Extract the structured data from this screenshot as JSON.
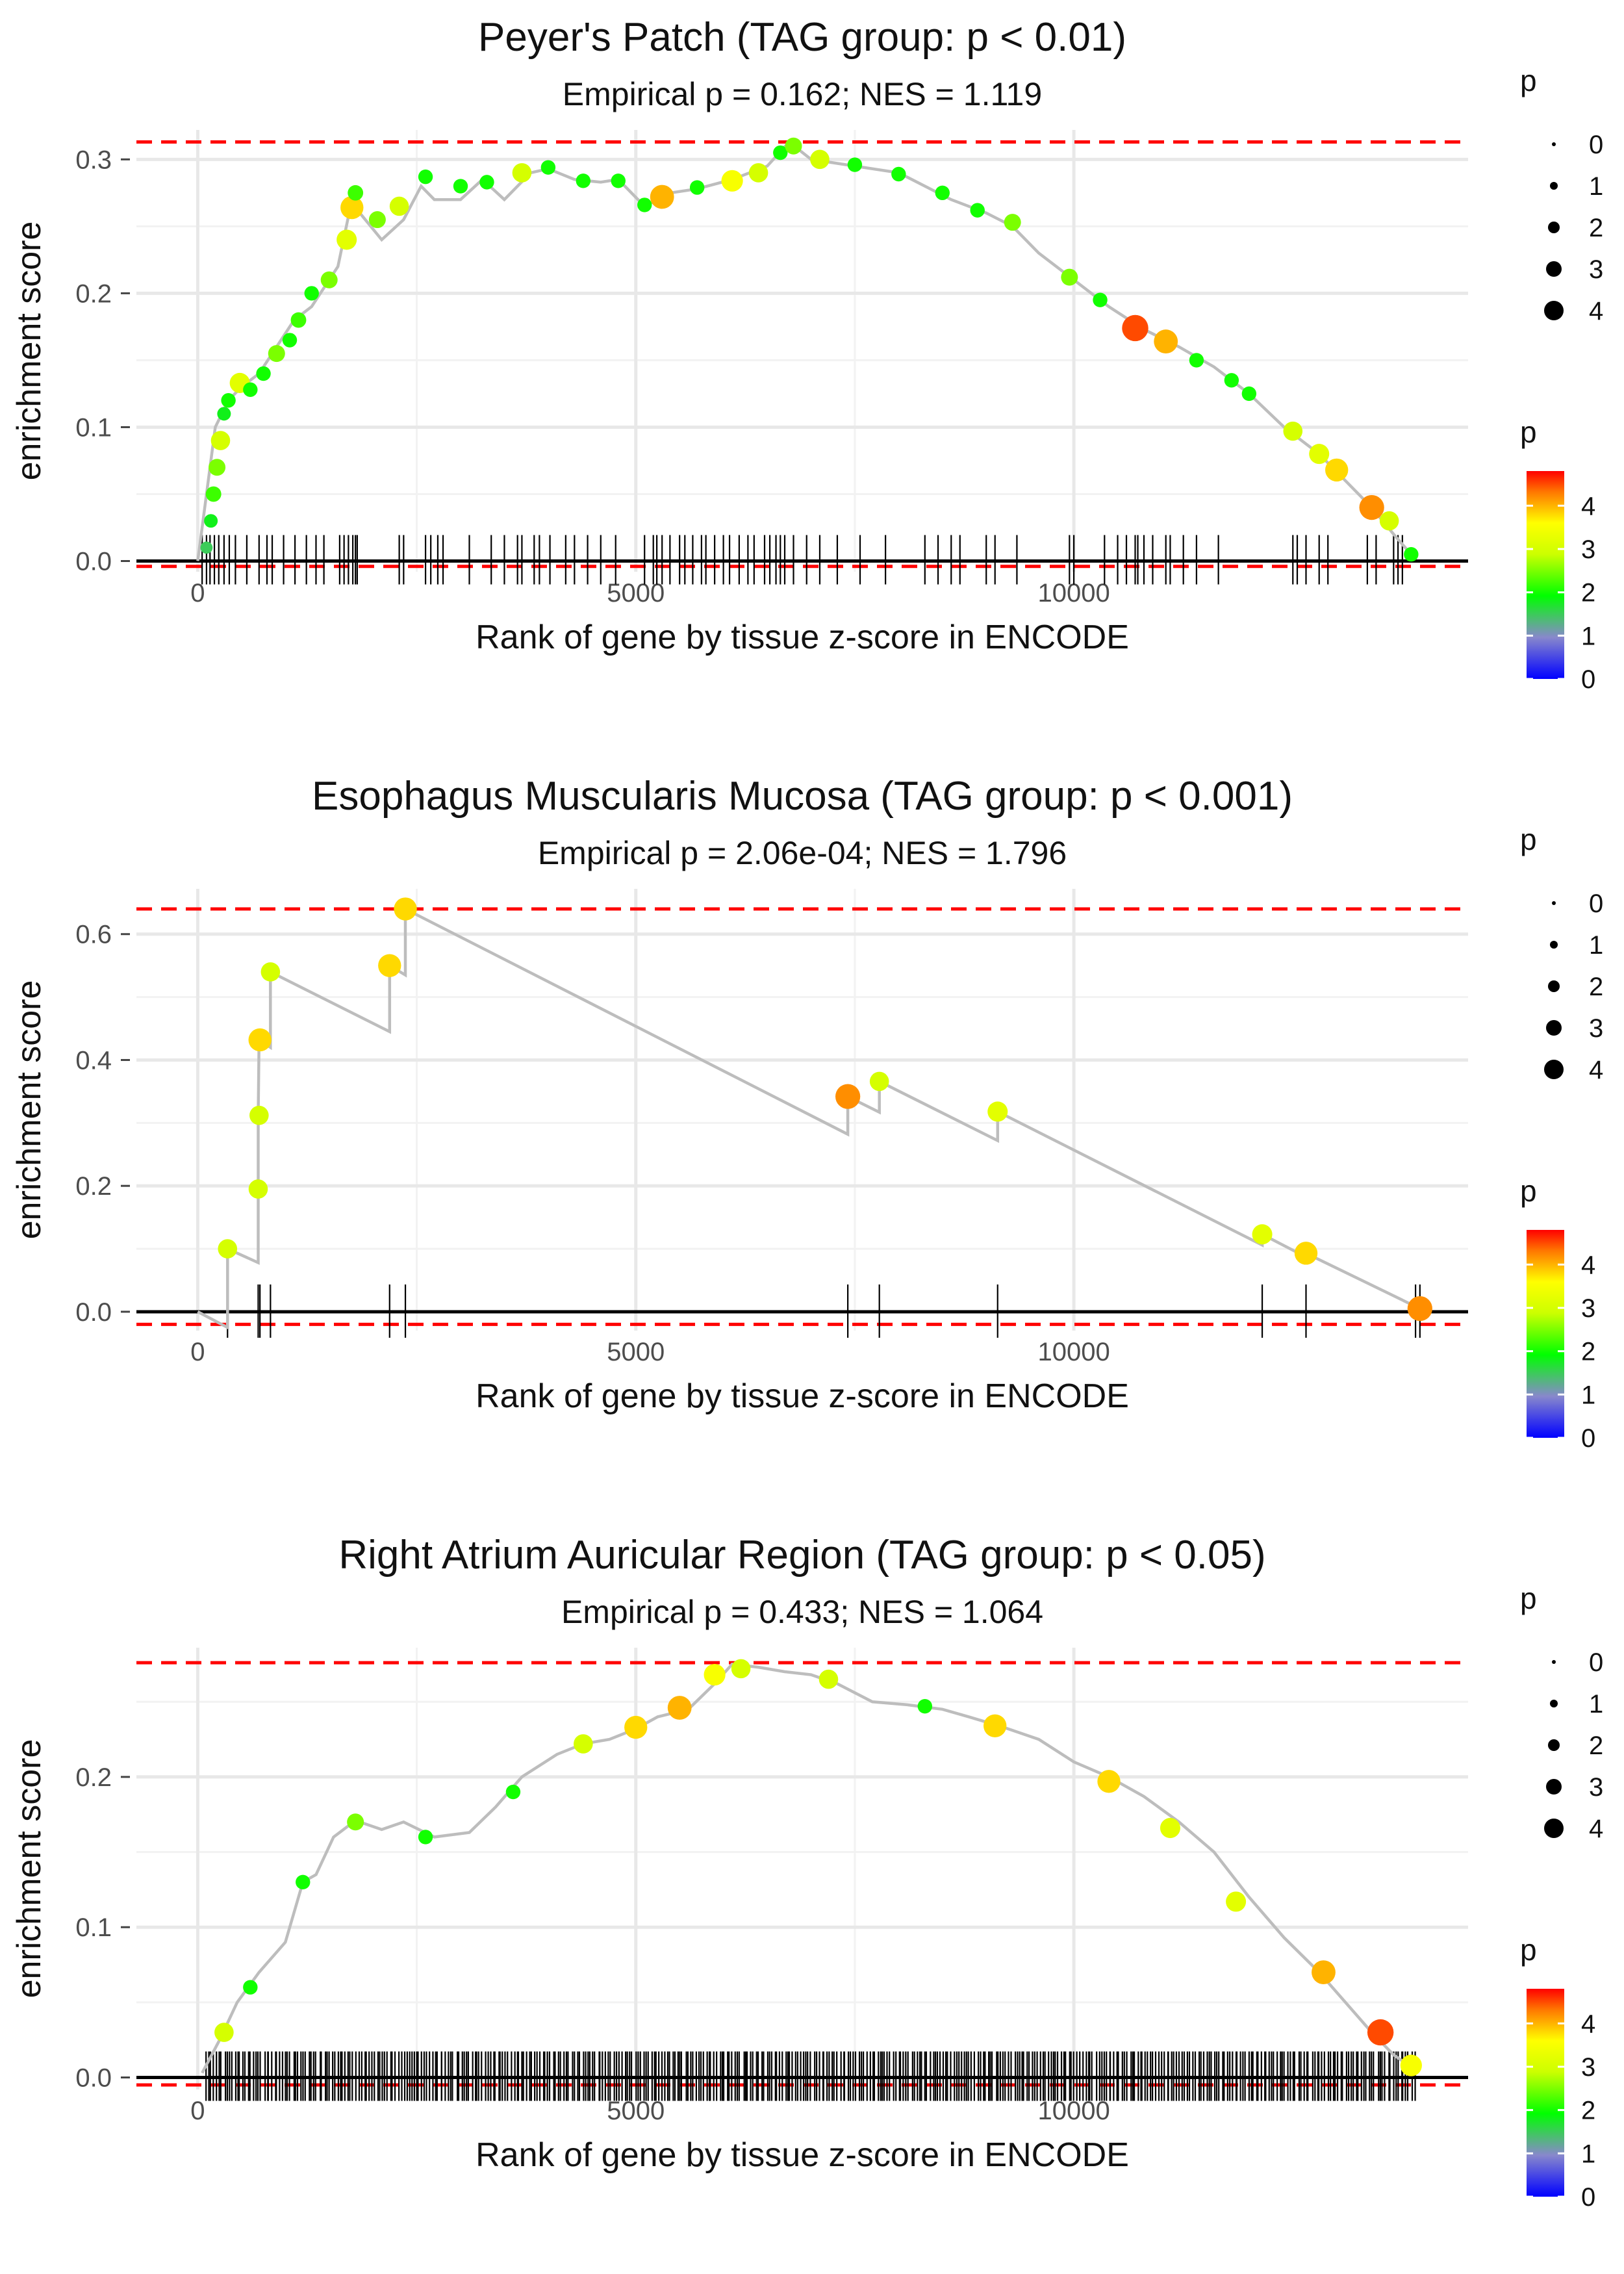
{
  "figure": {
    "type": "multi-panel enrichment plot",
    "panels": [
      {
        "title": "Peyer's Patch (TAG group: p < 0.01)",
        "subtitle": "Empirical p = 0.162; NES = 1.119",
        "xlabel": "Rank of gene by tissue z-score in ENCODE",
        "ylabel": "enrichment score",
        "legend_size_title": "p",
        "legend_color_title": "p"
      },
      {
        "title": "Esophagus Muscularis Mucosa (TAG group: p < 0.001)",
        "subtitle": "Empirical p = 2.06e-04; NES = 1.796",
        "xlabel": "Rank of gene by tissue z-score in ENCODE",
        "ylabel": "enrichment score",
        "legend_size_title": "p",
        "legend_color_title": "p"
      },
      {
        "title": "Right Atrium Auricular Region (TAG group: p < 0.05)",
        "subtitle": "Empirical p = 0.433; NES = 1.064",
        "xlabel": "Rank of gene by tissue z-score in ENCODE",
        "ylabel": "enrichment score",
        "legend_size_title": "p",
        "legend_color_title": "p"
      }
    ]
  },
  "chart_data": [
    {
      "type": "line",
      "title": "Peyer's Patch (TAG group: p < 0.01)",
      "subtitle": "Empirical p = 0.162; NES = 1.119",
      "xlabel": "Rank of gene by tissue z-score in ENCODE",
      "ylabel": "enrichment score",
      "xlim": [
        -700,
        14500
      ],
      "ylim": [
        -0.008,
        0.322
      ],
      "xticks": [
        0,
        5000,
        10000
      ],
      "xtick_labels": [
        "0",
        "5000",
        "10000"
      ],
      "yticks": [
        0,
        0.1,
        0.2,
        0.3
      ],
      "ytick_labels": [
        "0.0",
        "0.1",
        "0.2",
        "0.3"
      ],
      "max_es": 0.313,
      "min_es": -0.004,
      "legend_size_values": [
        "0",
        "1",
        "2",
        "3",
        "4"
      ],
      "colorbar_ticks": [
        "0",
        "1",
        "2",
        "3",
        "4"
      ],
      "colorbar_max": 4.8,
      "curve": [
        [
          0,
          0
        ],
        [
          100,
          0.05
        ],
        [
          200,
          0.1
        ],
        [
          350,
          0.12
        ],
        [
          500,
          0.13
        ],
        [
          700,
          0.14
        ],
        [
          900,
          0.16
        ],
        [
          1100,
          0.18
        ],
        [
          1300,
          0.19
        ],
        [
          1500,
          0.21
        ],
        [
          1600,
          0.22
        ],
        [
          1760,
          0.27
        ],
        [
          1850,
          0.26
        ],
        [
          2100,
          0.24
        ],
        [
          2350,
          0.255
        ],
        [
          2550,
          0.28
        ],
        [
          2700,
          0.27
        ],
        [
          3000,
          0.27
        ],
        [
          3250,
          0.285
        ],
        [
          3500,
          0.27
        ],
        [
          3800,
          0.29
        ],
        [
          4000,
          0.293
        ],
        [
          4300,
          0.285
        ],
        [
          4600,
          0.283
        ],
        [
          4800,
          0.285
        ],
        [
          5100,
          0.265
        ],
        [
          5400,
          0.275
        ],
        [
          5700,
          0.278
        ],
        [
          6100,
          0.285
        ],
        [
          6500,
          0.295
        ],
        [
          6750,
          0.313
        ],
        [
          7000,
          0.3
        ],
        [
          7500,
          0.295
        ],
        [
          8000,
          0.29
        ],
        [
          8300,
          0.28
        ],
        [
          8600,
          0.27
        ],
        [
          9000,
          0.26
        ],
        [
          9300,
          0.25
        ],
        [
          9600,
          0.23
        ],
        [
          10000,
          0.21
        ],
        [
          10400,
          0.19
        ],
        [
          10800,
          0.173
        ],
        [
          11200,
          0.16
        ],
        [
          11600,
          0.145
        ],
        [
          12000,
          0.125
        ],
        [
          12400,
          0.1
        ],
        [
          12800,
          0.08
        ],
        [
          13100,
          0.06
        ],
        [
          13400,
          0.04
        ],
        [
          13650,
          0.02
        ],
        [
          13850,
          0.005
        ]
      ],
      "points": [
        [
          100,
          0.01,
          1.5
        ],
        [
          150,
          0.03,
          1.8
        ],
        [
          180,
          0.05,
          2.2
        ],
        [
          220,
          0.07,
          2.5
        ],
        [
          260,
          0.09,
          3.0
        ],
        [
          300,
          0.11,
          1.8
        ],
        [
          350,
          0.12,
          2.0
        ],
        [
          480,
          0.133,
          3.2
        ],
        [
          600,
          0.128,
          2.0
        ],
        [
          750,
          0.14,
          2.0
        ],
        [
          900,
          0.155,
          2.5
        ],
        [
          1050,
          0.165,
          2.0
        ],
        [
          1150,
          0.18,
          2.2
        ],
        [
          1300,
          0.2,
          2.0
        ],
        [
          1500,
          0.21,
          2.5
        ],
        [
          1700,
          0.24,
          3.2
        ],
        [
          1760,
          0.264,
          3.8
        ],
        [
          1800,
          0.275,
          2.2
        ],
        [
          2050,
          0.255,
          2.5
        ],
        [
          2300,
          0.265,
          3.0
        ],
        [
          2600,
          0.287,
          2.0
        ],
        [
          3000,
          0.28,
          2.0
        ],
        [
          3300,
          0.283,
          2.0
        ],
        [
          3700,
          0.29,
          3.0
        ],
        [
          4000,
          0.294,
          2.0
        ],
        [
          4400,
          0.284,
          2.0
        ],
        [
          4800,
          0.284,
          2.0
        ],
        [
          5100,
          0.266,
          2.0
        ],
        [
          5300,
          0.272,
          4.0
        ],
        [
          5700,
          0.279,
          2.0
        ],
        [
          6100,
          0.284,
          3.5
        ],
        [
          6400,
          0.29,
          3.0
        ],
        [
          6650,
          0.305,
          2.0
        ],
        [
          6800,
          0.31,
          2.5
        ],
        [
          7100,
          0.3,
          3.0
        ],
        [
          7500,
          0.296,
          2.0
        ],
        [
          8000,
          0.289,
          2.0
        ],
        [
          8500,
          0.275,
          2.0
        ],
        [
          8900,
          0.262,
          2.0
        ],
        [
          9300,
          0.253,
          2.5
        ],
        [
          9950,
          0.212,
          2.5
        ],
        [
          10300,
          0.195,
          2.0
        ],
        [
          10700,
          0.174,
          4.5
        ],
        [
          11050,
          0.164,
          4.0
        ],
        [
          11400,
          0.15,
          2.0
        ],
        [
          11800,
          0.135,
          2.0
        ],
        [
          12000,
          0.125,
          2.0
        ],
        [
          12500,
          0.097,
          3.0
        ],
        [
          12800,
          0.08,
          3.2
        ],
        [
          13000,
          0.068,
          3.8
        ],
        [
          13400,
          0.04,
          4.2
        ],
        [
          13600,
          0.03,
          3.0
        ],
        [
          13850,
          0.005,
          2.0
        ]
      ],
      "ticks": [
        50,
        100,
        140,
        190,
        240,
        300,
        360,
        430,
        560,
        700,
        790,
        850,
        980,
        1110,
        1240,
        1350,
        1440,
        1620,
        1670,
        1720,
        1770,
        1800,
        1820,
        2300,
        2350,
        2600,
        2660,
        2740,
        2800,
        3100,
        3350,
        3500,
        3650,
        3700,
        3840,
        3900,
        4020,
        4200,
        4300,
        4450,
        4600,
        4770,
        5100,
        5200,
        5240,
        5300,
        5390,
        5500,
        5560,
        5650,
        5750,
        5800,
        5900,
        6000,
        6070,
        6180,
        6280,
        6350,
        6470,
        6530,
        6600,
        6650,
        6700,
        6800,
        6950,
        7100,
        7300,
        7560,
        7850,
        8300,
        8450,
        8600,
        8700,
        9000,
        9100,
        9350,
        9950,
        10000,
        10350,
        10500,
        10600,
        10700,
        10730,
        10800,
        10900,
        11050,
        11100,
        11250,
        11400,
        11650,
        12500,
        12550,
        12650,
        12800,
        12900,
        13350,
        13450,
        13650,
        13700,
        13750
      ]
    },
    {
      "type": "line",
      "title": "Esophagus Muscularis Mucosa (TAG group: p < 0.001)",
      "subtitle": "Empirical p = 2.06e-04; NES = 1.796",
      "xlabel": "Rank of gene by tissue z-score in ENCODE",
      "ylabel": "enrichment score",
      "xlim": [
        -700,
        14500
      ],
      "ylim": [
        -0.03,
        0.672
      ],
      "xticks": [
        0,
        5000,
        10000
      ],
      "xtick_labels": [
        "0",
        "5000",
        "10000"
      ],
      "yticks": [
        0,
        0.2,
        0.4,
        0.6
      ],
      "ytick_labels": [
        "0.0",
        "0.2",
        "0.4",
        "0.6"
      ],
      "max_es": 0.64,
      "min_es": -0.02,
      "legend_size_values": [
        "0",
        "1",
        "2",
        "3",
        "4"
      ],
      "colorbar_ticks": [
        "0",
        "1",
        "2",
        "3",
        "4"
      ],
      "colorbar_max": 4.8,
      "curve": [
        [
          0,
          0
        ],
        [
          340,
          -0.025
        ],
        [
          340,
          0.1
        ],
        [
          690,
          0.078
        ],
        [
          690,
          0.195
        ],
        [
          690,
          0.312
        ],
        [
          700,
          0.432
        ],
        [
          830,
          0.42
        ],
        [
          830,
          0.54
        ],
        [
          2190,
          0.445
        ],
        [
          2190,
          0.55
        ],
        [
          2370,
          0.535
        ],
        [
          2370,
          0.64
        ],
        [
          7420,
          0.282
        ],
        [
          7420,
          0.342
        ],
        [
          7780,
          0.317
        ],
        [
          7780,
          0.366
        ],
        [
          9130,
          0.272
        ],
        [
          9130,
          0.318
        ],
        [
          12150,
          0.106
        ],
        [
          12150,
          0.123
        ],
        [
          12650,
          0.087
        ],
        [
          12650,
          0.093
        ],
        [
          13950,
          0.005
        ]
      ],
      "points": [
        [
          340,
          0.1,
          3.0
        ],
        [
          690,
          0.195,
          3.0
        ],
        [
          700,
          0.312,
          3.0
        ],
        [
          710,
          0.432,
          3.8
        ],
        [
          830,
          0.54,
          3.0
        ],
        [
          2190,
          0.55,
          3.8
        ],
        [
          2370,
          0.64,
          3.8
        ],
        [
          7420,
          0.342,
          4.2
        ],
        [
          7780,
          0.366,
          3.0
        ],
        [
          9130,
          0.318,
          3.2
        ],
        [
          12150,
          0.123,
          3.2
        ],
        [
          12650,
          0.093,
          3.8
        ],
        [
          13950,
          0.005,
          4.2
        ]
      ],
      "ticks": [
        340,
        690,
        710,
        830,
        2190,
        2370,
        7420,
        7780,
        9130,
        12150,
        12650,
        13900,
        13950
      ]
    },
    {
      "type": "line",
      "title": "Right Atrium Auricular Region (TAG group: p < 0.05)",
      "subtitle": "Empirical p = 0.433; NES = 1.064",
      "xlabel": "Rank of gene by tissue z-score in ENCODE",
      "ylabel": "enrichment score",
      "xlim": [
        -700,
        14500
      ],
      "ylim": [
        -0.008,
        0.286
      ],
      "xticks": [
        0,
        5000,
        10000
      ],
      "xtick_labels": [
        "0",
        "5000",
        "10000"
      ],
      "yticks": [
        0,
        0.1,
        0.2
      ],
      "ytick_labels": [
        "0.0",
        "0.1",
        "0.2"
      ],
      "max_es": 0.276,
      "min_es": -0.005,
      "legend_size_values": [
        "0",
        "1",
        "2",
        "3",
        "4"
      ],
      "colorbar_ticks": [
        "0",
        "1",
        "2",
        "3",
        "4"
      ],
      "colorbar_max": 4.8,
      "curve": [
        [
          50,
          0.003
        ],
        [
          250,
          0.025
        ],
        [
          450,
          0.05
        ],
        [
          700,
          0.07
        ],
        [
          1000,
          0.09
        ],
        [
          1200,
          0.13
        ],
        [
          1350,
          0.135
        ],
        [
          1550,
          0.16
        ],
        [
          1800,
          0.171
        ],
        [
          2100,
          0.165
        ],
        [
          2350,
          0.17
        ],
        [
          2700,
          0.16
        ],
        [
          3100,
          0.163
        ],
        [
          3400,
          0.18
        ],
        [
          3700,
          0.2
        ],
        [
          4100,
          0.215
        ],
        [
          4400,
          0.222
        ],
        [
          4700,
          0.225
        ],
        [
          5000,
          0.232
        ],
        [
          5250,
          0.24
        ],
        [
          5600,
          0.245
        ],
        [
          5900,
          0.262
        ],
        [
          6100,
          0.275
        ],
        [
          6400,
          0.273
        ],
        [
          6700,
          0.27
        ],
        [
          7000,
          0.268
        ],
        [
          7300,
          0.262
        ],
        [
          7700,
          0.25
        ],
        [
          8100,
          0.248
        ],
        [
          8500,
          0.245
        ],
        [
          8800,
          0.24
        ],
        [
          9200,
          0.233
        ],
        [
          9600,
          0.225
        ],
        [
          10000,
          0.21
        ],
        [
          10400,
          0.2
        ],
        [
          10800,
          0.187
        ],
        [
          11200,
          0.17
        ],
        [
          11600,
          0.15
        ],
        [
          12000,
          0.12
        ],
        [
          12400,
          0.093
        ],
        [
          12800,
          0.07
        ],
        [
          13100,
          0.05
        ],
        [
          13400,
          0.03
        ],
        [
          13650,
          0.015
        ],
        [
          13850,
          0.007
        ]
      ],
      "points": [
        [
          300,
          0.03,
          3.0
        ],
        [
          600,
          0.06,
          2.0
        ],
        [
          1200,
          0.13,
          2.0
        ],
        [
          1800,
          0.17,
          2.5
        ],
        [
          2600,
          0.16,
          2.0
        ],
        [
          3600,
          0.19,
          2.0
        ],
        [
          4400,
          0.222,
          3.0
        ],
        [
          5000,
          0.233,
          3.8
        ],
        [
          5500,
          0.246,
          4.0
        ],
        [
          5900,
          0.268,
          3.5
        ],
        [
          6200,
          0.272,
          3.0
        ],
        [
          7200,
          0.265,
          3.0
        ],
        [
          8300,
          0.247,
          2.0
        ],
        [
          9100,
          0.234,
          3.8
        ],
        [
          10400,
          0.197,
          3.8
        ],
        [
          11100,
          0.166,
          3.2
        ],
        [
          11850,
          0.117,
          3.2
        ],
        [
          12850,
          0.07,
          4.0
        ],
        [
          13500,
          0.03,
          4.5
        ],
        [
          13850,
          0.008,
          3.5
        ]
      ],
      "tick_range": [
        80,
        13900
      ],
      "tick_count": 460
    }
  ]
}
